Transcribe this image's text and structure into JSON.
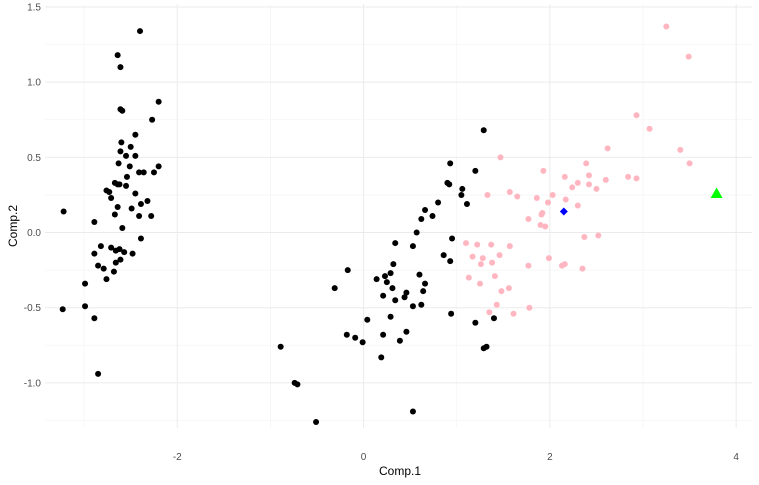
{
  "chart_data": {
    "type": "scatter",
    "xlabel": "Comp.1",
    "ylabel": "Comp.2",
    "xlim": [
      -3.42,
      4.17
    ],
    "ylim": [
      -1.3,
      1.52
    ],
    "x_ticks": [
      -2,
      0,
      2,
      4
    ],
    "x_tick_labels": [
      "-2",
      "0",
      "2",
      "4"
    ],
    "y_ticks": [
      -1.0,
      -0.5,
      0.0,
      0.5,
      1.0,
      1.5
    ],
    "y_tick_labels": [
      "-1.0",
      "-0.5",
      "0.0",
      "0.5",
      "1.0",
      "1.5"
    ],
    "grid": true,
    "legend": "none",
    "colors": {
      "black_group": "#000000",
      "pink_group": "#ffb6c1",
      "blue_point": "#0000ff",
      "green_point": "#00ff00",
      "grid_major": "#ebebeb",
      "grid_minor": "#f5f5f5"
    },
    "series": [
      {
        "color": "black",
        "marker": "circle",
        "points": [
          [
            -2.4,
            1.34
          ],
          [
            -2.64,
            1.18
          ],
          [
            -2.61,
            1.1
          ],
          [
            -2.2,
            0.87
          ],
          [
            -2.61,
            0.82
          ],
          [
            -2.59,
            0.81
          ],
          [
            -2.27,
            0.75
          ],
          [
            -2.45,
            0.65
          ],
          [
            -2.6,
            0.6
          ],
          [
            -2.5,
            0.57
          ],
          [
            -2.61,
            0.54
          ],
          [
            -2.55,
            0.51
          ],
          [
            -2.45,
            0.51
          ],
          [
            -2.63,
            0.46
          ],
          [
            -2.51,
            0.44
          ],
          [
            -2.2,
            0.44
          ],
          [
            -2.36,
            0.4
          ],
          [
            -2.41,
            0.4
          ],
          [
            -2.25,
            0.4
          ],
          [
            -2.54,
            0.37
          ],
          [
            -2.67,
            0.33
          ],
          [
            -2.64,
            0.32
          ],
          [
            -2.62,
            0.32
          ],
          [
            -2.55,
            0.31
          ],
          [
            -2.76,
            0.28
          ],
          [
            -2.73,
            0.27
          ],
          [
            -2.45,
            0.26
          ],
          [
            -2.71,
            0.23
          ],
          [
            -2.39,
            0.19
          ],
          [
            -2.32,
            0.21
          ],
          [
            -2.64,
            0.17
          ],
          [
            -2.49,
            0.16
          ],
          [
            -2.67,
            0.12
          ],
          [
            -2.41,
            0.11
          ],
          [
            -2.28,
            0.11
          ],
          [
            -3.22,
            0.14
          ],
          [
            -2.89,
            0.07
          ],
          [
            -2.59,
            0.03
          ],
          [
            -2.39,
            -0.04
          ],
          [
            -2.82,
            -0.09
          ],
          [
            -2.71,
            -0.1
          ],
          [
            -2.62,
            -0.11
          ],
          [
            -2.66,
            -0.12
          ],
          [
            -2.57,
            -0.13
          ],
          [
            -2.48,
            -0.14
          ],
          [
            -2.89,
            -0.14
          ],
          [
            -2.61,
            -0.18
          ],
          [
            -2.66,
            -0.2
          ],
          [
            -2.85,
            -0.22
          ],
          [
            -2.79,
            -0.24
          ],
          [
            -2.68,
            -0.26
          ],
          [
            -2.76,
            -0.31
          ],
          [
            -2.99,
            -0.34
          ],
          [
            -3.23,
            -0.51
          ],
          [
            -2.99,
            -0.49
          ],
          [
            -2.89,
            -0.57
          ],
          [
            -2.85,
            -0.94
          ],
          [
            1.29,
            0.68
          ],
          [
            0.93,
            0.46
          ],
          [
            1.2,
            0.41
          ],
          [
            0.9,
            0.33
          ],
          [
            0.92,
            0.32
          ],
          [
            1.06,
            0.29
          ],
          [
            1.05,
            0.25
          ],
          [
            0.8,
            0.2
          ],
          [
            1.11,
            0.19
          ],
          [
            0.66,
            0.15
          ],
          [
            0.74,
            0.11
          ],
          [
            0.62,
            0.09
          ],
          [
            0.57,
            0.0
          ],
          [
            0.34,
            -0.07
          ],
          [
            0.95,
            -0.04
          ],
          [
            0.53,
            -0.09
          ],
          [
            0.86,
            -0.15
          ],
          [
            0.93,
            -0.19
          ],
          [
            0.32,
            -0.21
          ],
          [
            0.29,
            -0.27
          ],
          [
            -0.17,
            -0.25
          ],
          [
            0.6,
            -0.28
          ],
          [
            0.23,
            -0.29
          ],
          [
            0.14,
            -0.31
          ],
          [
            0.25,
            -0.33
          ],
          [
            0.31,
            -0.37
          ],
          [
            0.66,
            -0.34
          ],
          [
            0.64,
            -0.39
          ],
          [
            0.46,
            -0.4
          ],
          [
            0.44,
            -0.43
          ],
          [
            0.21,
            -0.42
          ],
          [
            0.34,
            -0.45
          ],
          [
            0.53,
            -0.49
          ],
          [
            0.62,
            -0.48
          ],
          [
            -0.31,
            -0.37
          ],
          [
            0.94,
            -0.54
          ],
          [
            0.29,
            -0.56
          ],
          [
            1.4,
            -0.57
          ],
          [
            1.2,
            -0.6
          ],
          [
            0.04,
            -0.58
          ],
          [
            0.46,
            -0.66
          ],
          [
            0.21,
            -0.68
          ],
          [
            -0.18,
            -0.68
          ],
          [
            -0.09,
            -0.7
          ],
          [
            -0.01,
            -0.73
          ],
          [
            0.39,
            -0.72
          ],
          [
            1.32,
            -0.76
          ],
          [
            1.29,
            -0.77
          ],
          [
            0.19,
            -0.83
          ],
          [
            -0.89,
            -0.76
          ],
          [
            -0.74,
            -1.0
          ],
          [
            -0.71,
            -1.01
          ],
          [
            0.53,
            -1.19
          ],
          [
            -0.51,
            -1.26
          ]
        ]
      },
      {
        "color": "pink",
        "marker": "circle",
        "points": [
          [
            3.25,
            1.37
          ],
          [
            3.49,
            1.17
          ],
          [
            2.93,
            0.78
          ],
          [
            3.07,
            0.69
          ],
          [
            2.62,
            0.56
          ],
          [
            3.4,
            0.55
          ],
          [
            1.47,
            0.5
          ],
          [
            2.39,
            0.46
          ],
          [
            3.5,
            0.46
          ],
          [
            1.93,
            0.41
          ],
          [
            2.16,
            0.37
          ],
          [
            2.42,
            0.38
          ],
          [
            2.84,
            0.37
          ],
          [
            2.93,
            0.36
          ],
          [
            2.6,
            0.35
          ],
          [
            2.3,
            0.33
          ],
          [
            2.42,
            0.32
          ],
          [
            2.5,
            0.29
          ],
          [
            2.24,
            0.3
          ],
          [
            1.57,
            0.27
          ],
          [
            1.65,
            0.24
          ],
          [
            1.33,
            0.25
          ],
          [
            2.03,
            0.25
          ],
          [
            1.86,
            0.23
          ],
          [
            2.17,
            0.22
          ],
          [
            1.98,
            0.2
          ],
          [
            2.3,
            0.18
          ],
          [
            1.92,
            0.13
          ],
          [
            1.91,
            0.12
          ],
          [
            1.77,
            0.09
          ],
          [
            1.9,
            0.05
          ],
          [
            1.95,
            0.04
          ],
          [
            2.52,
            -0.02
          ],
          [
            2.37,
            -0.03
          ],
          [
            1.1,
            -0.07
          ],
          [
            1.22,
            -0.08
          ],
          [
            1.37,
            -0.08
          ],
          [
            1.57,
            -0.09
          ],
          [
            1.46,
            -0.15
          ],
          [
            1.17,
            -0.16
          ],
          [
            1.28,
            -0.17
          ],
          [
            1.99,
            -0.17
          ],
          [
            1.38,
            -0.2
          ],
          [
            1.26,
            -0.21
          ],
          [
            2.16,
            -0.21
          ],
          [
            1.77,
            -0.22
          ],
          [
            2.13,
            -0.22
          ],
          [
            2.35,
            -0.24
          ],
          [
            1.41,
            -0.29
          ],
          [
            1.13,
            -0.3
          ],
          [
            1.25,
            -0.34
          ],
          [
            1.56,
            -0.37
          ],
          [
            1.48,
            -0.39
          ],
          [
            1.43,
            -0.48
          ],
          [
            1.78,
            -0.5
          ],
          [
            1.61,
            -0.54
          ],
          [
            1.35,
            -0.53
          ]
        ]
      },
      {
        "color": "blue",
        "marker": "diamond",
        "points": [
          [
            2.15,
            0.14
          ]
        ]
      },
      {
        "color": "green",
        "marker": "triangle",
        "points": [
          [
            3.79,
            0.26
          ]
        ]
      }
    ]
  }
}
